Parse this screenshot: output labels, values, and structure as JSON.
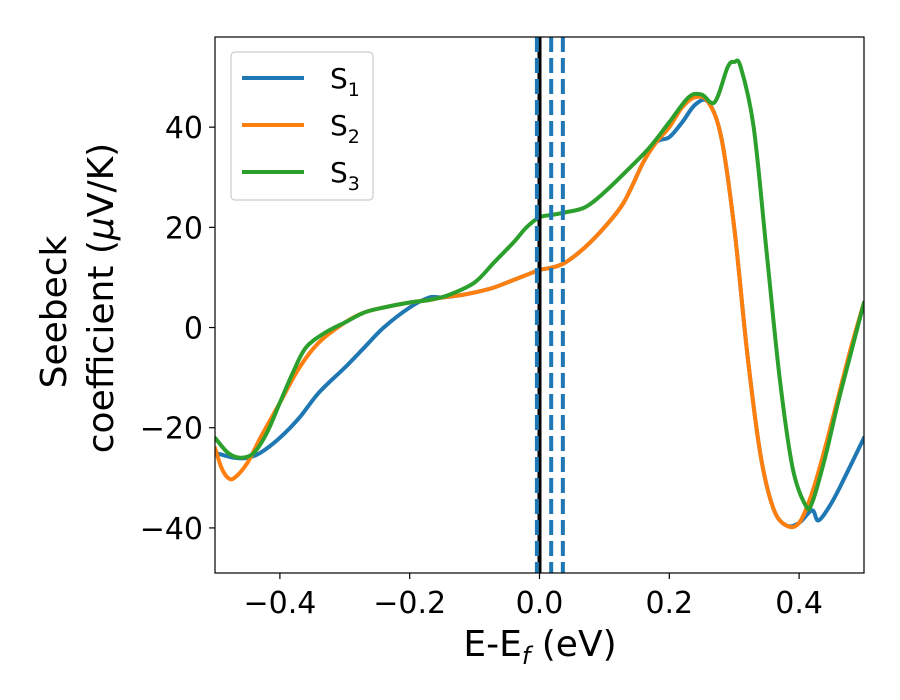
{
  "chart_data": {
    "type": "line",
    "xlabel_main": "E-E",
    "xlabel_sub": "f",
    "xlabel_tail": " (eV)",
    "ylabel_line1": "Seebeck",
    "ylabel_line2": "coefficient  (",
    "ylabel_mu": "μ",
    "ylabel_tail": "V/K)",
    "xlim": [
      -0.5,
      0.5
    ],
    "ylim": [
      -49,
      58
    ],
    "xticks": [
      -0.4,
      -0.2,
      0.0,
      0.2,
      0.4
    ],
    "xtick_labels": [
      "−0.4",
      "−0.2",
      "0.0",
      "0.2",
      "0.4"
    ],
    "yticks": [
      -40,
      -20,
      0,
      20,
      40
    ],
    "ytick_labels": [
      "−40",
      "−20",
      "0",
      "20",
      "40"
    ],
    "grid": false,
    "legend_position": "top-left",
    "vlines": [
      {
        "x": 0.0,
        "color": "#000000",
        "style": "solid"
      },
      {
        "x": -0.004,
        "color": "#1f77b4",
        "style": "dashed"
      },
      {
        "x": 0.018,
        "color": "#1f77b4",
        "style": "dashed"
      },
      {
        "x": 0.036,
        "color": "#1f77b4",
        "style": "dashed"
      }
    ],
    "series": [
      {
        "name": "S",
        "name_sub": "1",
        "color": "#1f77b4",
        "x": [
          -0.5,
          -0.47,
          -0.45,
          -0.43,
          -0.4,
          -0.37,
          -0.34,
          -0.3,
          -0.27,
          -0.24,
          -0.2,
          -0.17,
          -0.15,
          -0.12,
          -0.1,
          -0.07,
          -0.04,
          -0.02,
          0.0,
          0.02,
          0.04,
          0.07,
          0.1,
          0.13,
          0.16,
          0.18,
          0.2,
          0.22,
          0.24,
          0.26,
          0.28,
          0.3,
          0.32,
          0.34,
          0.36,
          0.38,
          0.4,
          0.42,
          0.43,
          0.45,
          0.47,
          0.5
        ],
        "y": [
          -25,
          -26,
          -26,
          -25,
          -22,
          -18,
          -13,
          -8,
          -4,
          0,
          4,
          6,
          6,
          6.5,
          7,
          8,
          9.5,
          10.5,
          11.5,
          12,
          13,
          16,
          20,
          25,
          33,
          37,
          38,
          41,
          44.5,
          45,
          38,
          20,
          -5,
          -25,
          -36,
          -39.5,
          -39,
          -36.5,
          -38.5,
          -35,
          -30,
          -22
        ]
      },
      {
        "name": "S",
        "name_sub": "2",
        "color": "#ff7f0e",
        "x": [
          -0.5,
          -0.49,
          -0.48,
          -0.47,
          -0.45,
          -0.43,
          -0.4,
          -0.37,
          -0.34,
          -0.3,
          -0.27,
          -0.24,
          -0.2,
          -0.17,
          -0.15,
          -0.12,
          -0.1,
          -0.07,
          -0.04,
          -0.02,
          0.0,
          0.02,
          0.04,
          0.07,
          0.1,
          0.13,
          0.16,
          0.18,
          0.2,
          0.22,
          0.24,
          0.26,
          0.28,
          0.3,
          0.32,
          0.34,
          0.36,
          0.38,
          0.4,
          0.42,
          0.44,
          0.46,
          0.48,
          0.5
        ],
        "y": [
          -24,
          -28,
          -30,
          -30,
          -27,
          -22,
          -15,
          -8,
          -3,
          1,
          3,
          4,
          5,
          5.5,
          6,
          6.5,
          7,
          8,
          9.5,
          10.5,
          11.5,
          12,
          13,
          16,
          20,
          25,
          33,
          37,
          40,
          44,
          46,
          45,
          38,
          20,
          -5,
          -25,
          -36,
          -39.5,
          -39,
          -33,
          -24,
          -14,
          -4,
          5
        ]
      },
      {
        "name": "S",
        "name_sub": "3",
        "color": "#2ca02c",
        "x": [
          -0.5,
          -0.48,
          -0.46,
          -0.44,
          -0.42,
          -0.4,
          -0.38,
          -0.36,
          -0.33,
          -0.3,
          -0.27,
          -0.24,
          -0.2,
          -0.17,
          -0.14,
          -0.1,
          -0.07,
          -0.04,
          -0.02,
          0.0,
          0.02,
          0.04,
          0.07,
          0.1,
          0.14,
          0.17,
          0.2,
          0.23,
          0.25,
          0.27,
          0.29,
          0.3,
          0.31,
          0.33,
          0.35,
          0.37,
          0.39,
          0.41,
          0.42,
          0.44,
          0.46,
          0.48,
          0.5
        ],
        "y": [
          -22,
          -25,
          -26,
          -25,
          -21,
          -15,
          -9,
          -4,
          -1,
          1,
          3,
          4,
          5,
          5.5,
          6.5,
          9,
          13,
          17,
          20,
          22,
          22.5,
          23,
          24,
          27,
          32,
          36,
          41,
          46,
          46.5,
          45,
          52,
          53,
          52,
          40,
          15,
          -10,
          -28,
          -35.5,
          -35,
          -26,
          -15,
          -5,
          5
        ]
      }
    ]
  }
}
